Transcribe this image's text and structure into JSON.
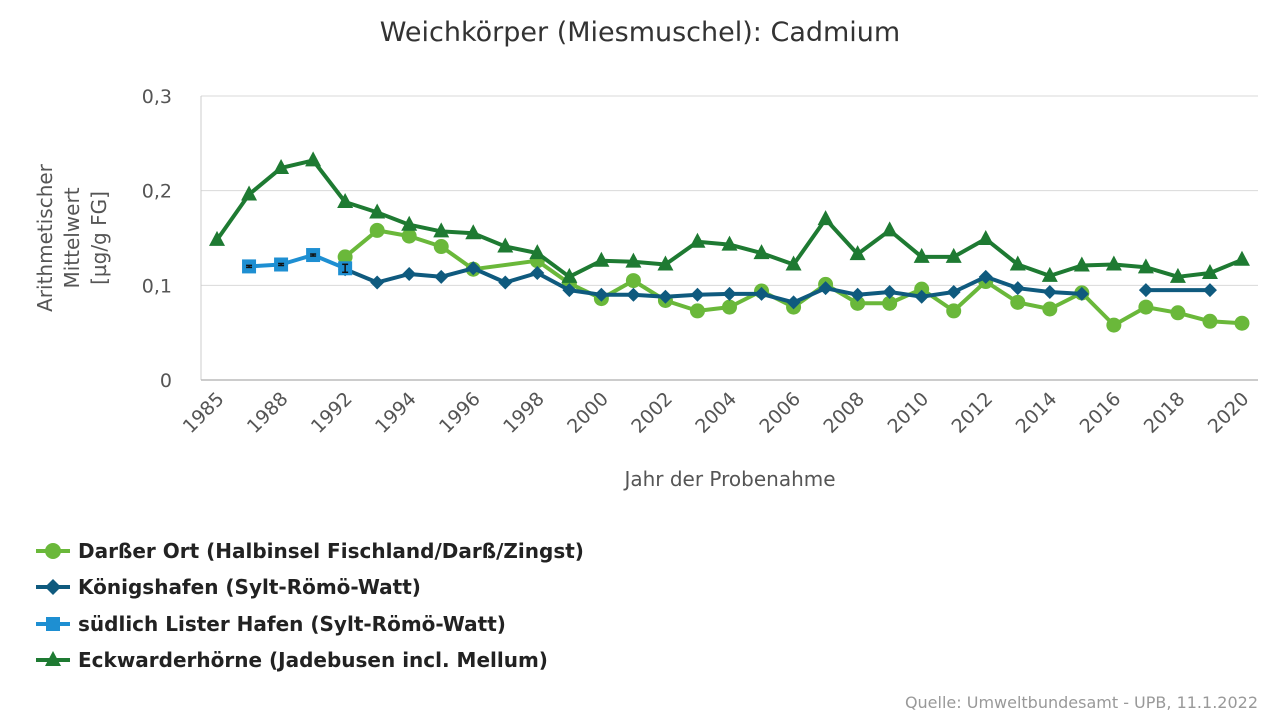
{
  "chart_data": {
    "type": "line",
    "title": "Weichkörper (Miesmuschel): Cadmium",
    "xlabel": "Jahr der Probenahme",
    "ylabel_lines": [
      "Arithmetischer",
      "Mittelwert",
      "[µg/g FG]"
    ],
    "x_tick_labels": [
      "1985",
      "1988",
      "1992",
      "1994",
      "1996",
      "1998",
      "2000",
      "2002",
      "2004",
      "2006",
      "2008",
      "2010",
      "2012",
      "2014",
      "2016",
      "2018",
      "2020"
    ],
    "x_categories": [
      1985,
      1987,
      1988,
      1990,
      1992,
      1993,
      1994,
      1995,
      1996,
      1997,
      1998,
      1999,
      2000,
      2001,
      2002,
      2003,
      2004,
      2005,
      2006,
      2007,
      2008,
      2009,
      2010,
      2011,
      2012,
      2013,
      2014,
      2015,
      2016,
      2017,
      2018,
      2019,
      2020
    ],
    "y_ticks": [
      {
        "value": 0,
        "label": "0"
      },
      {
        "value": 0.1,
        "label": "0,1"
      },
      {
        "value": 0.2,
        "label": "0,2"
      },
      {
        "value": 0.3,
        "label": "0,3"
      }
    ],
    "ylim": [
      0,
      0.3
    ],
    "series": [
      {
        "name": "Darßer Ort (Halbinsel Fischland/Darß/Zingst)",
        "color": "#6ab83a",
        "marker": "circle",
        "points": [
          [
            1992,
            0.13
          ],
          [
            1993,
            0.158
          ],
          [
            1994,
            0.152
          ],
          [
            1995,
            0.141
          ],
          [
            1996,
            0.117
          ],
          [
            1998,
            0.126
          ],
          [
            1999,
            0.102
          ],
          [
            2000,
            0.086
          ],
          [
            2001,
            0.105
          ],
          [
            2002,
            0.084
          ],
          [
            2003,
            0.073
          ],
          [
            2004,
            0.077
          ],
          [
            2005,
            0.094
          ],
          [
            2006,
            0.077
          ],
          [
            2007,
            0.101
          ],
          [
            2008,
            0.081
          ],
          [
            2009,
            0.081
          ],
          [
            2010,
            0.096
          ],
          [
            2011,
            0.073
          ],
          [
            2012,
            0.104
          ],
          [
            2013,
            0.082
          ],
          [
            2014,
            0.075
          ],
          [
            2015,
            0.092
          ],
          [
            2016,
            0.058
          ],
          [
            2017,
            0.077
          ],
          [
            2018,
            0.071
          ],
          [
            2019,
            0.062
          ],
          [
            2020,
            0.06
          ]
        ]
      },
      {
        "name": "Königshafen (Sylt-Römö-Watt)",
        "color": "#0f5a7e",
        "marker": "diamond",
        "points": [
          [
            1992,
            0.117
          ],
          [
            1993,
            0.103
          ],
          [
            1994,
            0.112
          ],
          [
            1995,
            0.109
          ],
          [
            1996,
            0.118
          ],
          [
            1997,
            0.103
          ],
          [
            1998,
            0.113
          ],
          [
            1999,
            0.095
          ],
          [
            2000,
            0.09
          ],
          [
            2001,
            0.09
          ],
          [
            2002,
            0.088
          ],
          [
            2003,
            0.09
          ],
          [
            2004,
            0.091
          ],
          [
            2005,
            0.091
          ],
          [
            2006,
            0.082
          ],
          [
            2007,
            0.097
          ],
          [
            2008,
            0.09
          ],
          [
            2009,
            0.093
          ],
          [
            2010,
            0.088
          ],
          [
            2011,
            0.093
          ],
          [
            2012,
            0.109
          ],
          [
            2013,
            0.097
          ],
          [
            2014,
            0.093
          ],
          [
            2015,
            0.091
          ],
          [
            2017,
            0.095
          ],
          [
            2019,
            0.095
          ]
        ],
        "breaks_after": [
          2015
        ]
      },
      {
        "name": "südlich Lister Hafen (Sylt-Römö-Watt)",
        "color": "#1e8fd2",
        "marker": "square",
        "points": [
          [
            1987,
            0.12
          ],
          [
            1988,
            0.122
          ],
          [
            1990,
            0.132
          ],
          [
            1992,
            0.118
          ]
        ]
      },
      {
        "name": "Eckwarderhörne (Jadebusen incl. Mellum)",
        "color": "#1e7a32",
        "marker": "triangle",
        "points": [
          [
            1985,
            0.148
          ],
          [
            1987,
            0.196
          ],
          [
            1988,
            0.224
          ],
          [
            1990,
            0.232
          ],
          [
            1992,
            0.188
          ],
          [
            1993,
            0.177
          ],
          [
            1994,
            0.164
          ],
          [
            1995,
            0.157
          ],
          [
            1996,
            0.155
          ],
          [
            1997,
            0.141
          ],
          [
            1998,
            0.134
          ],
          [
            1999,
            0.109
          ],
          [
            2000,
            0.126
          ],
          [
            2001,
            0.125
          ],
          [
            2002,
            0.122
          ],
          [
            2003,
            0.146
          ],
          [
            2004,
            0.143
          ],
          [
            2005,
            0.134
          ],
          [
            2006,
            0.122
          ],
          [
            2007,
            0.17
          ],
          [
            2008,
            0.133
          ],
          [
            2009,
            0.158
          ],
          [
            2010,
            0.13
          ],
          [
            2011,
            0.13
          ],
          [
            2012,
            0.149
          ],
          [
            2013,
            0.122
          ],
          [
            2014,
            0.11
          ],
          [
            2015,
            0.121
          ],
          [
            2016,
            0.122
          ],
          [
            2017,
            0.119
          ],
          [
            2018,
            0.109
          ],
          [
            2019,
            0.113
          ],
          [
            2020,
            0.127
          ]
        ]
      }
    ],
    "source": "Quelle: Umweltbundesamt - UPB, 11.1.2022"
  }
}
